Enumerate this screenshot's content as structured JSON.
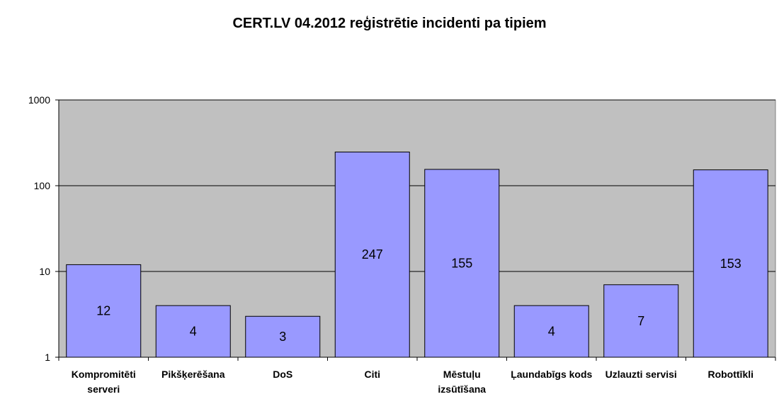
{
  "chart_data": {
    "type": "bar",
    "title": "CERT.LV 04.2012 reģistrētie incidenti pa tipiem",
    "xlabel": "",
    "ylabel": "",
    "yscale": "log",
    "ylim": [
      1,
      1000
    ],
    "yticks": [
      "1",
      "10",
      "100",
      "1000"
    ],
    "grid": true,
    "legend": "none",
    "categories": [
      [
        "Kompromitēti",
        "serveri"
      ],
      [
        "Pikšķerēšana"
      ],
      [
        "DoS"
      ],
      [
        "Citi"
      ],
      [
        "Mēstuļu",
        "izsūtīšana"
      ],
      [
        "Ļaundabīgs kods"
      ],
      [
        "Uzlauzti servisi"
      ],
      [
        "Robottīkli"
      ]
    ],
    "values": [
      12,
      4,
      3,
      247,
      155,
      4,
      7,
      153
    ],
    "data_labels": [
      "12",
      "4",
      "3",
      "247",
      "155",
      "4",
      "7",
      "153"
    ],
    "colors": {
      "bar_fill": "#9999ff",
      "bar_stroke": "#000000",
      "plot_background": "#c0c0c0",
      "gridline": "#000000"
    }
  }
}
